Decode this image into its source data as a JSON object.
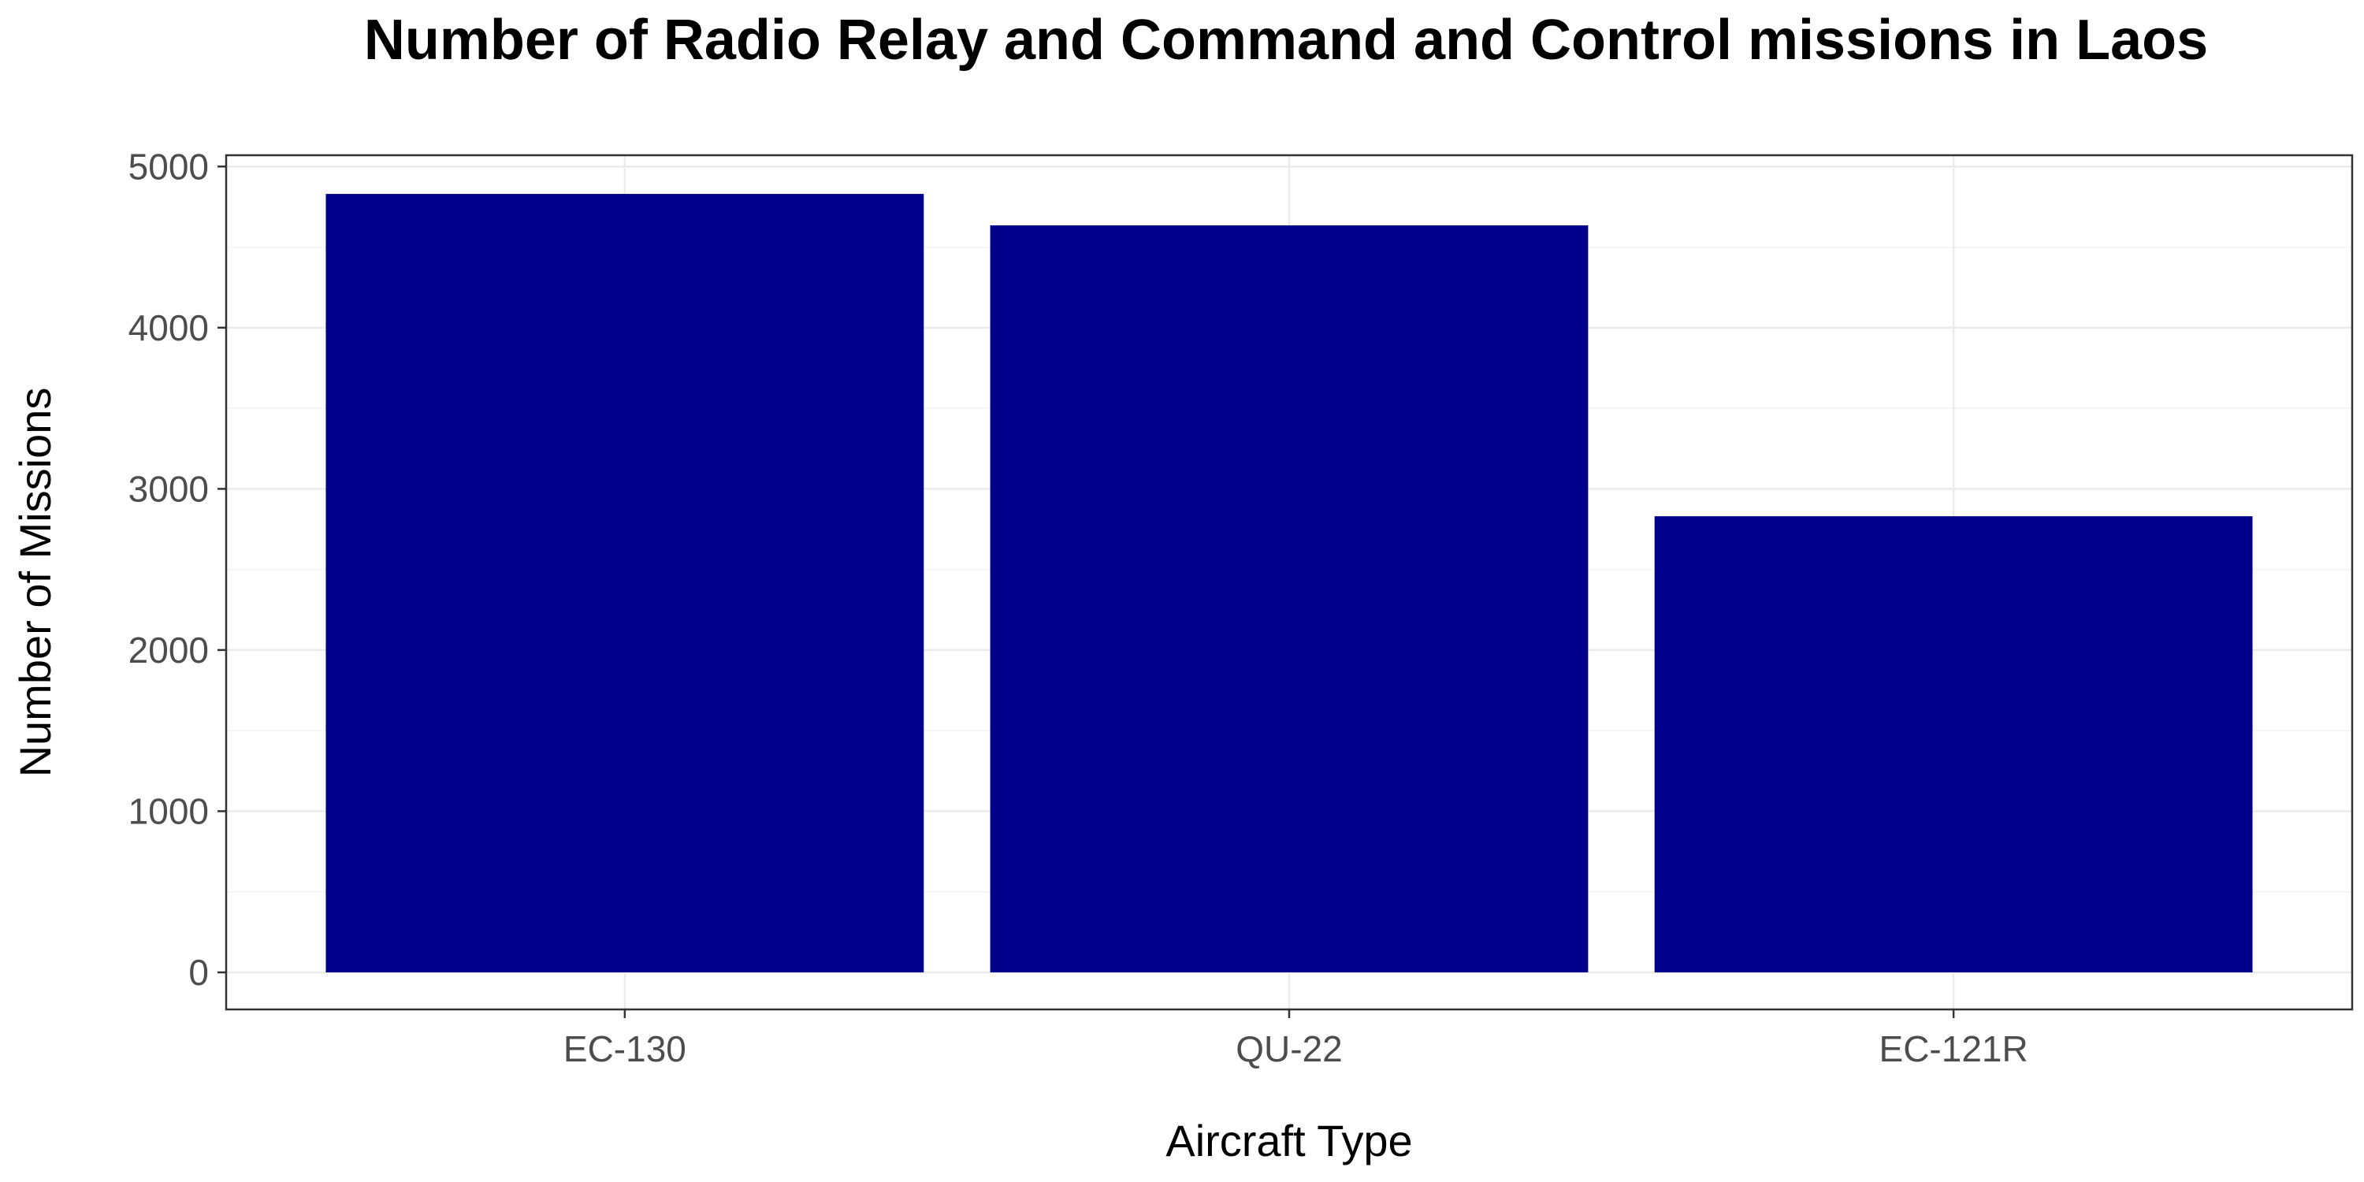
{
  "chart_data": {
    "type": "bar",
    "title": "Number of Radio Relay and Command and Control missions in Laos",
    "xlabel": "Aircraft Type",
    "ylabel": "Number of Missions",
    "categories": [
      "EC-130",
      "QU-22",
      "EC-121R"
    ],
    "values": [
      4830,
      4635,
      2830
    ],
    "ylim": [
      -230,
      5070
    ],
    "yticks": [
      0,
      1000,
      2000,
      3000,
      4000,
      5000
    ],
    "ytick_labels": [
      "0",
      "1000",
      "2000",
      "3000",
      "4000",
      "5000"
    ],
    "grid": true,
    "legend": "none",
    "bar_color": "#00008B",
    "panel_border_color": "#333333",
    "grid_major_color": "#ebebeb",
    "grid_minor_color": "#f3f3f3"
  }
}
